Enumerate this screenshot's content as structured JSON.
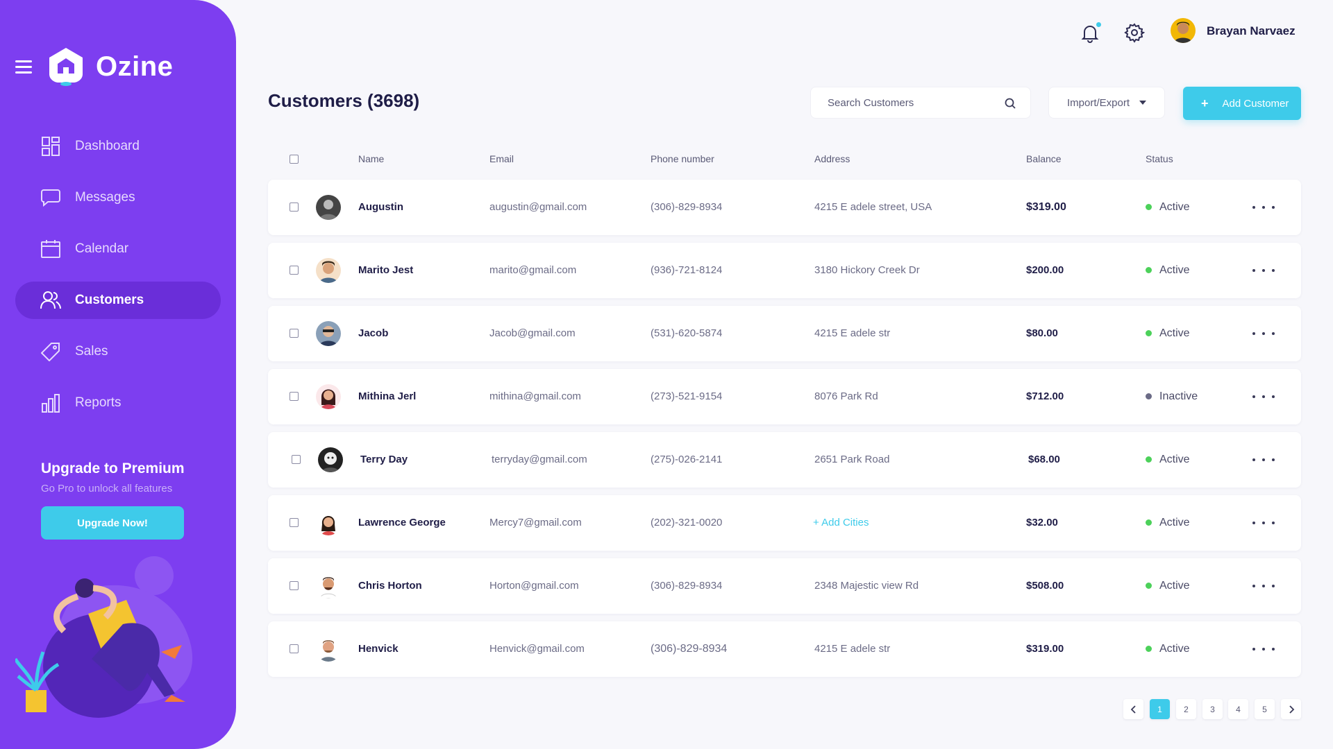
{
  "brand": {
    "name": "Ozine"
  },
  "nav": {
    "items": [
      {
        "label": "Dashboard",
        "icon": "dashboard-icon"
      },
      {
        "label": "Messages",
        "icon": "message-icon"
      },
      {
        "label": "Calendar",
        "icon": "calendar-icon"
      },
      {
        "label": "Customers",
        "icon": "users-icon",
        "active": true
      },
      {
        "label": "Sales",
        "icon": "tag-icon"
      },
      {
        "label": "Reports",
        "icon": "bar-chart-icon"
      }
    ]
  },
  "premium": {
    "title": "Upgrade to Premium",
    "subtitle": "Go Pro to unlock all features",
    "button": "Upgrade Now!"
  },
  "topbar": {
    "user_name": "Brayan Narvaez"
  },
  "page": {
    "title": "Customers (3698)",
    "search_placeholder": "Search Customers",
    "import_label": "Import/Export",
    "add_label": "Add Customer"
  },
  "table": {
    "columns": [
      "Name",
      "Email",
      "Phone number",
      "Address",
      "Balance",
      "Status"
    ],
    "rows": [
      {
        "name": "Augustin",
        "email": "augustin@gmail.com",
        "phone": "(306)-829-8934",
        "address": "4215 E adele street, USA",
        "balance": "$319.00",
        "status": "Active"
      },
      {
        "name": "Marito Jest",
        "email": "marito@gmail.com",
        "phone": "(936)-721-8124",
        "address": "3180 Hickory Creek Dr",
        "balance": "$200.00",
        "status": "Active"
      },
      {
        "name": "Jacob",
        "email": "Jacob@gmail.com",
        "phone": "(531)-620-5874",
        "address": "4215 E adele str",
        "balance": "$80.00",
        "status": "Active"
      },
      {
        "name": "Mithina Jerl",
        "email": "mithina@gmail.com",
        "phone": "(273)-521-9154",
        "address": "8076 Park Rd",
        "balance": "$712.00",
        "status": "Inactive"
      },
      {
        "name": "Terry Day",
        "email": "terryday@gmail.com",
        "phone": "(275)-026-2141",
        "address": "2651 Park Road",
        "balance": "$68.00",
        "status": "Active"
      },
      {
        "name": "Lawrence George",
        "email": "Mercy7@gmail.com",
        "phone": "(202)-321-0020",
        "address": "+ Add Cities",
        "balance": "$32.00",
        "status": "Active"
      },
      {
        "name": "Chris Horton",
        "email": "Horton@gmail.com",
        "phone": "(306)-829-8934",
        "address": "2348 Majestic view Rd",
        "balance": "$508.00",
        "status": "Active"
      },
      {
        "name": "Henvick",
        "email": "Henvick@gmail.com",
        "phone": "(306)-829-8934",
        "address": "4215 E adele str",
        "balance": "$319.00",
        "status": "Active"
      }
    ]
  },
  "pagination": {
    "pages": [
      "1",
      "2",
      "3",
      "4",
      "5"
    ],
    "current": "1"
  },
  "colors": {
    "sidebar": "#7d3ef0",
    "accent": "#3ecbea",
    "active_status": "#4cd15a",
    "inactive_status": "#6b6b86"
  }
}
